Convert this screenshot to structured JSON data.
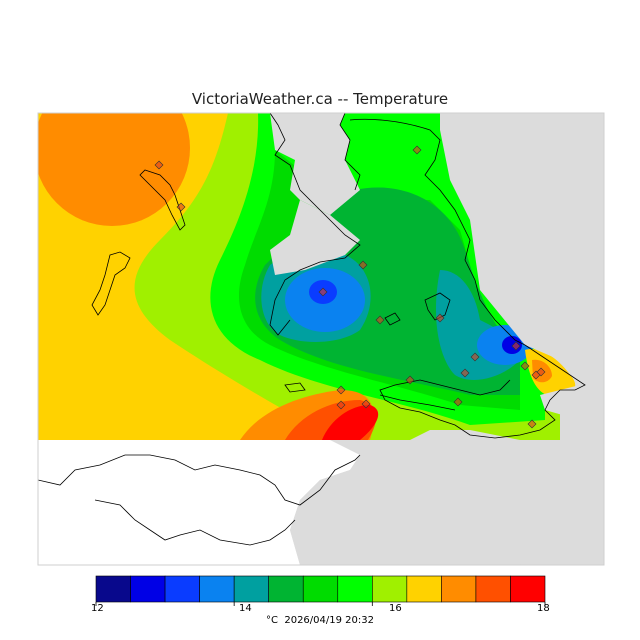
{
  "title": "VictoriaWeather.ca -- Temperature",
  "legend": {
    "colors": [
      "#08088c",
      "#0000e6",
      "#0a3cff",
      "#0a82f0",
      "#00a0a0",
      "#00b432",
      "#00dc00",
      "#00ff00",
      "#a0f000",
      "#ffd200",
      "#ff8c00",
      "#ff5000",
      "#ff0000"
    ],
    "min": 12,
    "max": 18,
    "tick_labels": [
      "12",
      "14",
      "16",
      "18"
    ],
    "unit": "°C",
    "timestamp": "2026/04/19 20:32"
  },
  "colors": {
    "land": "#dcdcdc",
    "outside_land": "#ffffff",
    "station_marker": "#e04020"
  },
  "stations_count_note": ""
}
